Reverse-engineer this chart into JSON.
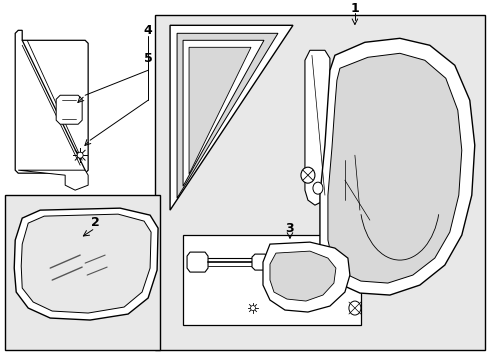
{
  "bg_color": "#ffffff",
  "line_color": "#000000",
  "shaded_bg": "#d8d8d8",
  "shaded_light": "#e8e8e8",
  "white": "#ffffff"
}
